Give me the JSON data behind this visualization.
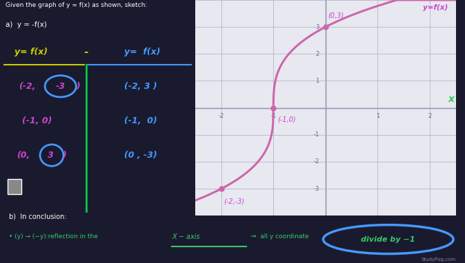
{
  "bg_color": "#1a1a2e",
  "grid_bg": "#e8e8f0",
  "title_text": "Given the graph of y = f(x) as shown, sketch:",
  "part_a_text": "a)  y = -f(x)",
  "conclusion_text": "b)  In conclusion:",
  "bullet_text": "• (y) → (−y):reflection in the",
  "xaxis_label": "X − axis",
  "arrow_text": "⇒  all y coordinate",
  "circle_text": "divide by −1",
  "curve_color": "#cc66aa",
  "point_color": "#cc66aa",
  "key_points": [
    [
      -2,
      -3
    ],
    [
      -1,
      0
    ],
    [
      0,
      3
    ]
  ],
  "grid_xlim": [
    -2.5,
    2.5
  ],
  "grid_ylim": [
    -4,
    4
  ],
  "green_line_color": "#00cc44",
  "handwriting_yellow": "#cccc00",
  "handwriting_blue": "#4499ff",
  "handwriting_purple": "#cc44cc",
  "handwriting_green": "#33cc66"
}
